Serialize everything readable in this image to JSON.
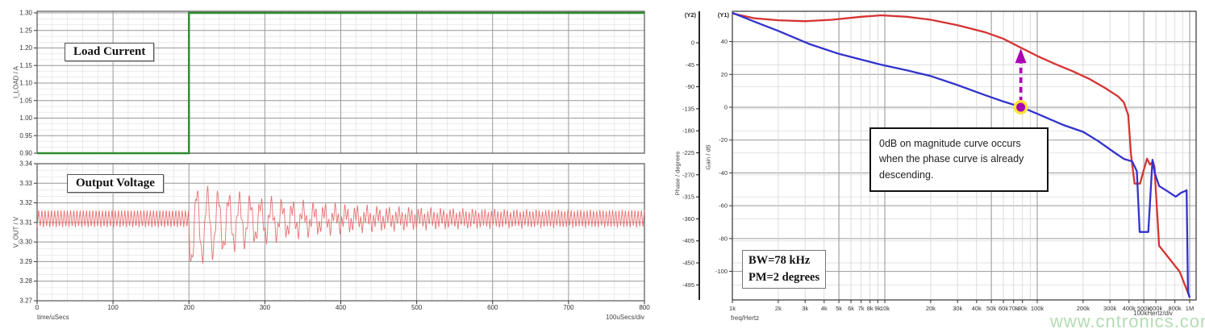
{
  "watermark": "www.cntronics.com",
  "chart_data": [
    {
      "id": "transient-response",
      "type": "line",
      "xlabel": "time/uSecs",
      "x_div_label": "100uSecs/div",
      "xlim": [
        0,
        800
      ],
      "x_ticks": [
        0,
        100,
        200,
        300,
        400,
        500,
        600,
        700,
        800
      ],
      "grid": "major+minor",
      "subplots": [
        {
          "label": "Load Current",
          "ylabel": "I_LOAD / A",
          "ylim": [
            0.9,
            1.3
          ],
          "y_ticks": [
            "1.30",
            "1.25",
            "1.20",
            "1.15",
            "1.10",
            "1.05",
            "1.00",
            "0.95",
            "0.90"
          ],
          "series": [
            {
              "name": "load-current",
              "color": "#2e8b2e",
              "points": [
                [
                  0,
                  0.9
                ],
                [
                  200,
                  0.9
                ],
                [
                  200,
                  1.3
                ],
                [
                  800,
                  1.3
                ]
              ]
            }
          ]
        },
        {
          "label": "Output Voltage",
          "ylabel": "V_OUT / V",
          "ylim": [
            3.27,
            3.34
          ],
          "y_ticks": [
            "3.34",
            "3.33",
            "3.32",
            "3.31",
            "3.30",
            "3.29",
            "3.28",
            "3.27"
          ],
          "series": [
            {
              "name": "output-voltage",
              "color": "#e87272",
              "synth": {
                "baseline": 3.312,
                "ripple_amp": 0.0045,
                "ripple_period": 4.2,
                "step_time": 200,
                "ring_amp": 0.019,
                "ring_period": 14,
                "ring_tau": 130,
                "ring_offset": -0.0045,
                "offset_tau": 60
              },
              "key_points": [
                [
                  0,
                  3.312
                ],
                [
                  200,
                  3.284
                ],
                [
                  212,
                  3.326
                ],
                [
                  560,
                  3.312
                ],
                [
                  800,
                  3.312
                ]
              ],
              "summary": "3.31 V with ±5 mV switching ripple; load step at 200 uSecs causes undershoot to 3.284 V and overshoot to 3.326 V, ringing (~14 uSec period) decays by ~560 uSecs"
            }
          ]
        }
      ]
    },
    {
      "id": "bode-plot",
      "type": "line",
      "x_scale": "log",
      "xlabel": "freq/Hertz",
      "x_div_label": "100kHertz/div",
      "xlim": [
        1000,
        1000000
      ],
      "x_ticks": [
        {
          "f": 1000,
          "label": "1k"
        },
        {
          "f": 2000,
          "label": "2k"
        },
        {
          "f": 3000,
          "label": "3k"
        },
        {
          "f": 4000,
          "label": "4k"
        },
        {
          "f": 5000,
          "label": "5k"
        },
        {
          "f": 6000,
          "label": "6k"
        },
        {
          "f": 7000,
          "label": "7k"
        },
        {
          "f": 8000,
          "label": "8k"
        },
        {
          "f": 9000,
          "label": "9k"
        },
        {
          "f": 10000,
          "label": "10k"
        },
        {
          "f": 20000,
          "label": "20k"
        },
        {
          "f": 30000,
          "label": "30k"
        },
        {
          "f": 40000,
          "label": "40k"
        },
        {
          "f": 50000,
          "label": "50k"
        },
        {
          "f": 60000,
          "label": "60k"
        },
        {
          "f": 70000,
          "label": "70k"
        },
        {
          "f": 80000,
          "label": "80k"
        },
        {
          "f": 100000,
          "label": "100k"
        },
        {
          "f": 200000,
          "label": "200k"
        },
        {
          "f": 300000,
          "label": "300k"
        },
        {
          "f": 400000,
          "label": "400k"
        },
        {
          "f": 500000,
          "label": "500k"
        },
        {
          "f": 600000,
          "label": "600k"
        },
        {
          "f": 800000,
          "label": "800k"
        },
        {
          "f": 1000000,
          "label": "1M"
        }
      ],
      "axes": {
        "phase": {
          "header": "(Y2)",
          "label": "Phase / degrees",
          "ticks": [
            0,
            -45,
            -90,
            -135,
            -180,
            -225,
            -270,
            -315,
            -360,
            -405,
            -450,
            -495
          ]
        },
        "gain": {
          "header": "(Y1)",
          "label": "Gain / dB",
          "ticks": [
            40,
            20,
            0,
            -20,
            -40,
            -60,
            -80,
            -100
          ]
        }
      },
      "series": [
        {
          "name": "phase",
          "axis": "phase",
          "color": "#d63333",
          "points": [
            [
              1000,
              60
            ],
            [
              1400,
              50
            ],
            [
              2000,
              46
            ],
            [
              3000,
              44
            ],
            [
              4500,
              47
            ],
            [
              7000,
              53
            ],
            [
              9500,
              56
            ],
            [
              14000,
              53
            ],
            [
              20000,
              47
            ],
            [
              30000,
              36
            ],
            [
              45000,
              22
            ],
            [
              60000,
              8
            ],
            [
              78000,
              -10
            ],
            [
              100000,
              -27
            ],
            [
              130000,
              -43
            ],
            [
              170000,
              -58
            ],
            [
              220000,
              -74
            ],
            [
              280000,
              -93
            ],
            [
              340000,
              -110
            ],
            [
              370000,
              -122
            ],
            [
              395000,
              -148
            ],
            [
              412000,
              -228
            ],
            [
              435000,
              -288
            ],
            [
              473000,
              -288
            ],
            [
              500000,
              -260
            ],
            [
              525000,
              -237
            ],
            [
              549000,
              -249
            ],
            [
              575000,
              -243
            ],
            [
              588000,
              -255
            ],
            [
              630000,
              -415
            ],
            [
              730000,
              -440
            ],
            [
              860000,
              -468
            ],
            [
              1000000,
              -520
            ]
          ]
        },
        {
          "name": "gain",
          "axis": "gain",
          "color": "#3333cc",
          "points": [
            [
              1000,
              57.5
            ],
            [
              1500,
              51
            ],
            [
              2000,
              46.5
            ],
            [
              3200,
              38.5
            ],
            [
              5000,
              32.5
            ],
            [
              9400,
              26
            ],
            [
              14000,
              22.5
            ],
            [
              20000,
              19
            ],
            [
              30000,
              13.5
            ],
            [
              45000,
              7.5
            ],
            [
              60000,
              3.5
            ],
            [
              79000,
              0
            ],
            [
              100000,
              -4
            ],
            [
              150000,
              -11
            ],
            [
              200000,
              -15
            ],
            [
              250000,
              -20.5
            ],
            [
              320000,
              -27.5
            ],
            [
              370000,
              -31.5
            ],
            [
              420000,
              -33
            ],
            [
              450000,
              -39
            ],
            [
              470000,
              -76
            ],
            [
              535000,
              -76
            ],
            [
              570000,
              -32
            ],
            [
              590000,
              -40
            ],
            [
              630000,
              -48
            ],
            [
              710000,
              -51
            ],
            [
              810000,
              -54.5
            ],
            [
              880000,
              -52
            ],
            [
              940000,
              -51
            ],
            [
              955000,
              -50.5
            ],
            [
              975000,
              -113
            ],
            [
              1000000,
              -116
            ]
          ]
        }
      ],
      "marker": {
        "name": "crossover-point",
        "freq": 78000,
        "gain_db": 0,
        "dot_color": "#aa00b4",
        "halo_color": "#ffe23c"
      },
      "arrow": {
        "freq": 78000,
        "from_gain_db": 3,
        "to_phase_deg": -12,
        "color": "#aa00b4"
      },
      "annotation": {
        "text": "0dB on magnitude curve occurs when the phase curve is already descending."
      },
      "callout": {
        "lines": [
          "BW=78 kHz",
          "PM=2 degrees"
        ]
      }
    }
  ]
}
